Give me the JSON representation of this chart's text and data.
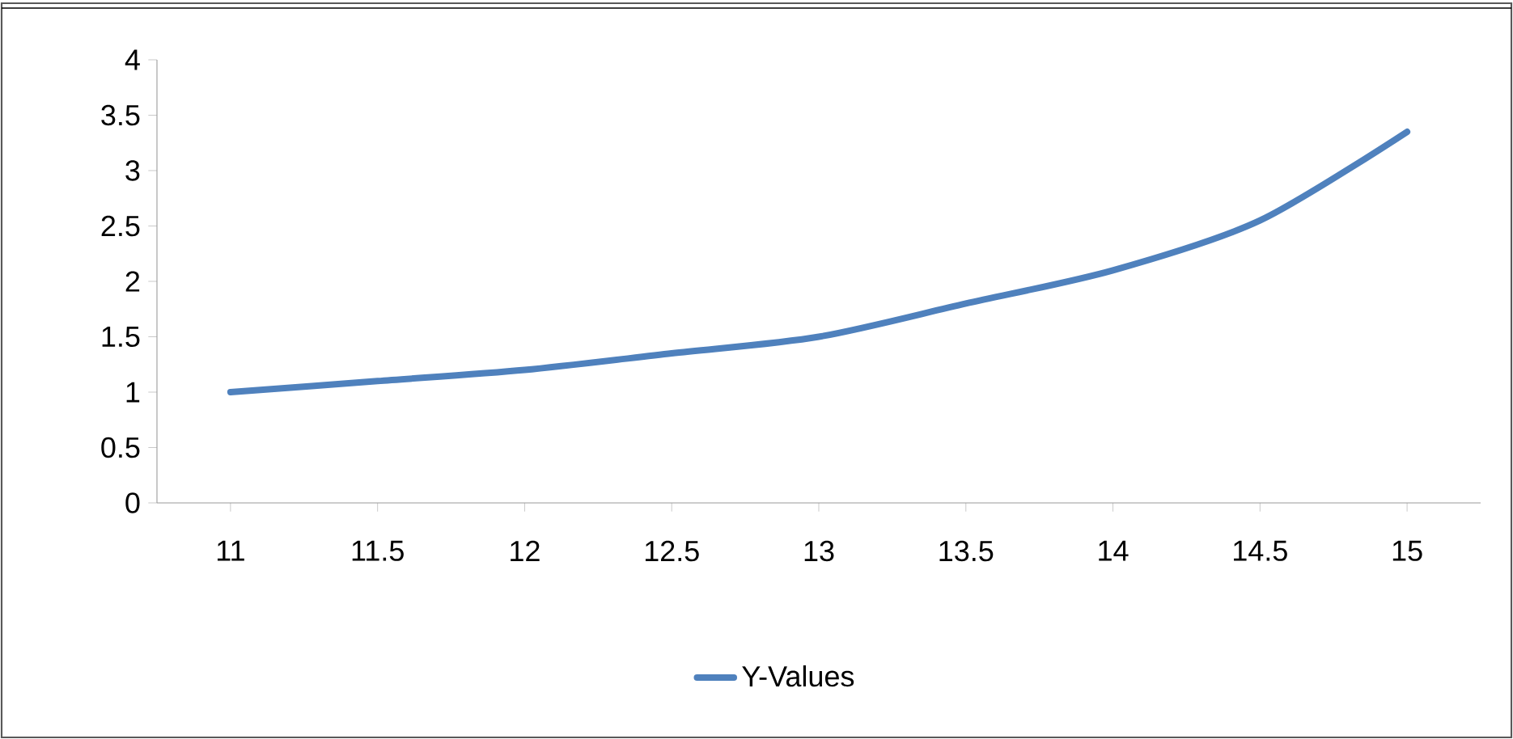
{
  "chart_data": {
    "type": "line",
    "categories": [
      "11",
      "11.5",
      "12",
      "12.5",
      "13",
      "13.5",
      "14",
      "14.5",
      "15"
    ],
    "series": [
      {
        "name": "Y-Values",
        "color": "#4f81bd",
        "values": [
          1.0,
          1.1,
          1.2,
          1.35,
          1.5,
          1.8,
          2.1,
          2.55,
          3.35
        ]
      }
    ],
    "ylim": [
      0,
      4
    ],
    "yticks": [
      0,
      0.5,
      1,
      1.5,
      2,
      2.5,
      3,
      3.5,
      4
    ],
    "legend": "bottom",
    "marker": "none",
    "line_style": "solid",
    "grid": false
  }
}
